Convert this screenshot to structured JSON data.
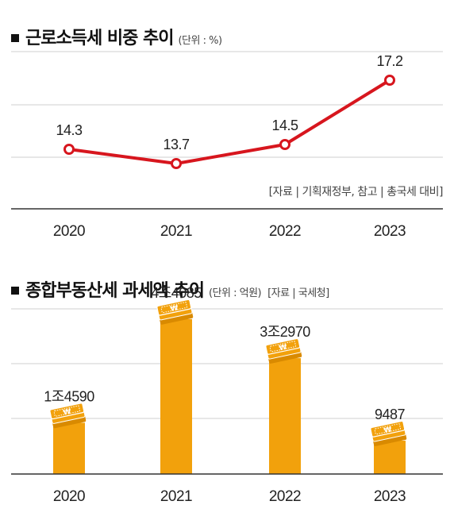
{
  "chart1": {
    "header_title": "근로소득세 비중 추이",
    "header_unit": "(단위 : %)",
    "source_note": "[자료 | 기획재정부, 참고 | 총국세 대비]",
    "colors": {
      "line": "#d7161e",
      "grid": "#cfcfcf",
      "axis": "#333333"
    }
  },
  "chart2": {
    "header_title": "종합부동산세 과세액 추이",
    "header_unit": "(단위 : 억원)",
    "source_note": "[자료 | 국세청]",
    "colors": {
      "bar": "#f2a10c",
      "bar_dark": "#d98a00",
      "grid": "#cfcfcf",
      "axis": "#333333"
    }
  },
  "chart_data": [
    {
      "type": "line",
      "title": "근로소득세 비중 추이",
      "unit": "%",
      "categories": [
        "2020",
        "2021",
        "2022",
        "2023"
      ],
      "values": [
        14.3,
        13.7,
        14.5,
        17.2
      ],
      "data_labels": [
        "14.3",
        "13.7",
        "14.5",
        "17.2"
      ],
      "ylim": [
        11.8,
        18.4
      ],
      "grid": true
    },
    {
      "type": "bar",
      "title": "종합부동산세 과세액 추이",
      "unit": "억원",
      "categories": [
        "2020",
        "2021",
        "2022",
        "2023"
      ],
      "values": [
        14590,
        44085,
        32970,
        9487
      ],
      "data_labels": [
        "1조4590",
        "4조4085",
        "3조2970",
        "9487"
      ],
      "ylim": [
        0,
        47000
      ],
      "grid": true
    }
  ]
}
